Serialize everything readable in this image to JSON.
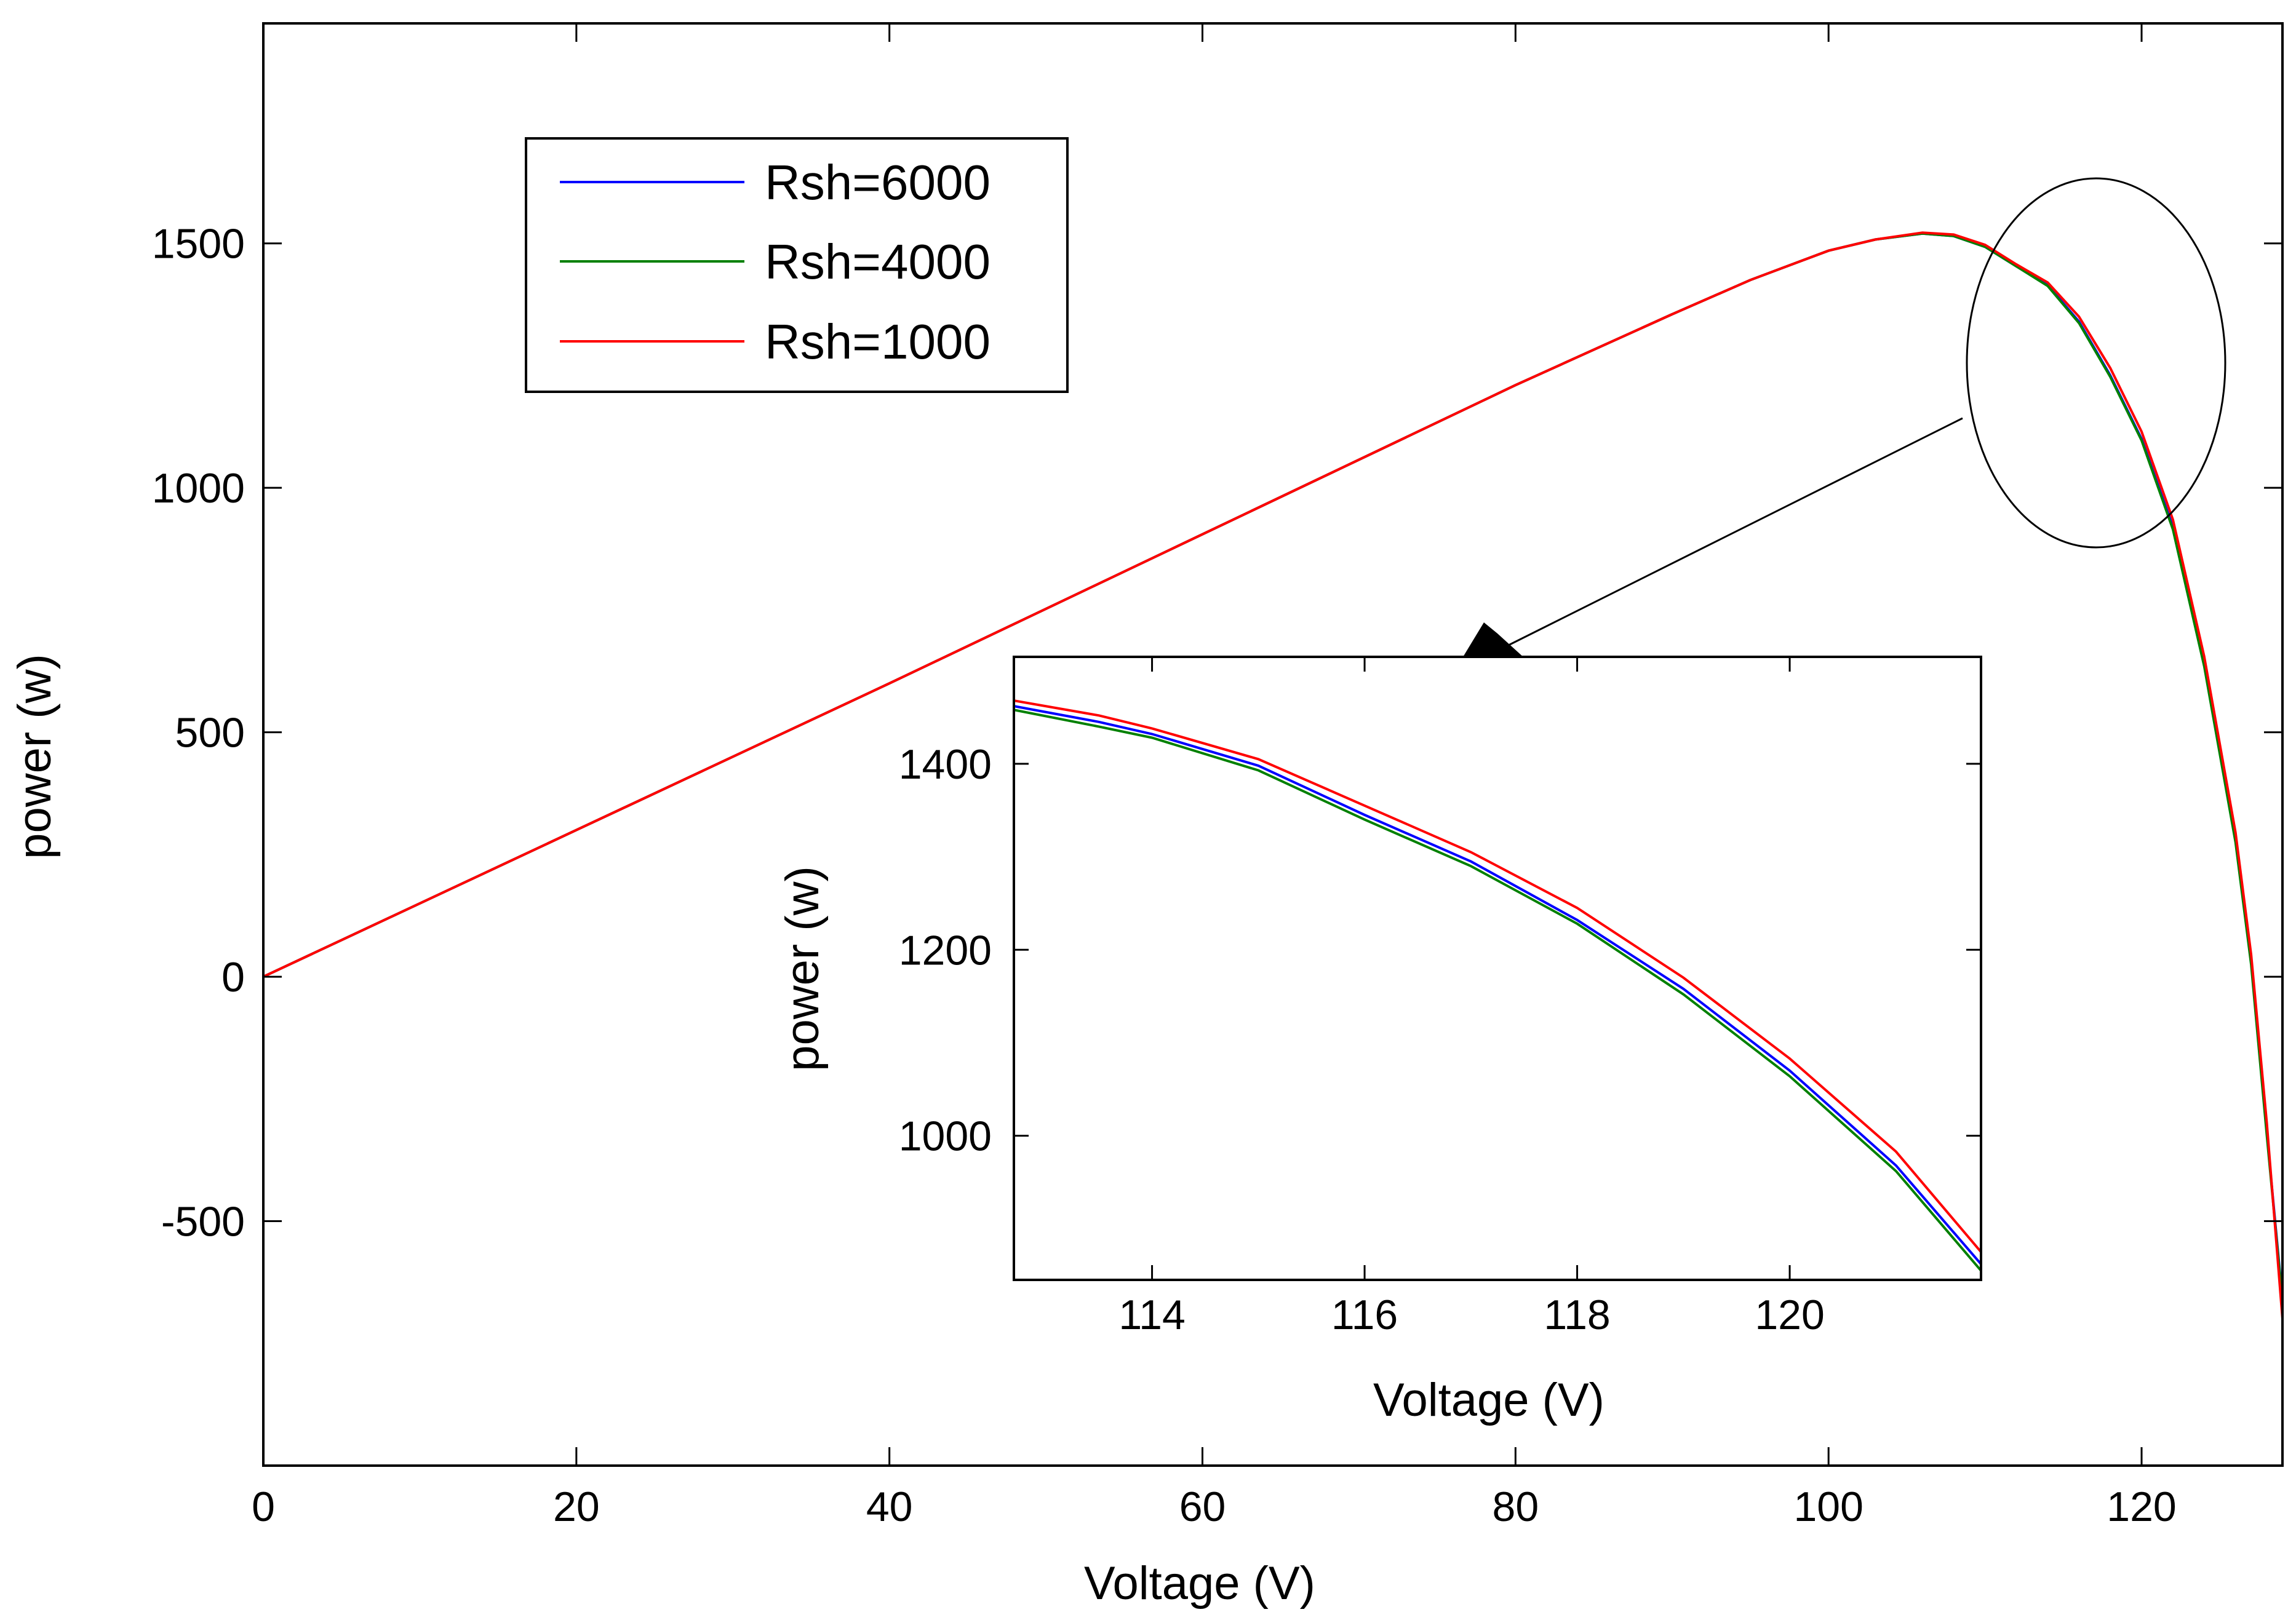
{
  "chart_data": [
    {
      "id": "main",
      "type": "line",
      "title": "",
      "xlabel": "Voltage (V)",
      "ylabel": "power (w)",
      "xlim": [
        0,
        129
      ],
      "ylim": [
        -1000,
        1950
      ],
      "xticks": [
        0,
        20,
        40,
        60,
        80,
        100,
        120
      ],
      "yticks": [
        -500,
        0,
        500,
        1000,
        1500
      ],
      "grid": false,
      "legend_position": "top-left",
      "series": [
        {
          "name": "Rsh=6000",
          "color": "#0000ff",
          "x": [
            0,
            20,
            40,
            60,
            80,
            90,
            95,
            100,
            103,
            106,
            108,
            110,
            112,
            114,
            116,
            118,
            120,
            122,
            124,
            126,
            127,
            128,
            129
          ],
          "y": [
            0,
            300,
            600,
            905,
            1210,
            1355,
            1425,
            1485,
            1508,
            1520,
            1515,
            1493,
            1453,
            1415,
            1340,
            1230,
            1100,
            920,
            640,
            280,
            30,
            -320,
            -660
          ]
        },
        {
          "name": "Rsh=4000",
          "color": "#008000",
          "x": [
            0,
            20,
            40,
            60,
            80,
            90,
            95,
            100,
            103,
            106,
            108,
            110,
            112,
            114,
            116,
            118,
            120,
            122,
            124,
            126,
            127,
            128,
            129
          ],
          "y": [
            0,
            300,
            600,
            905,
            1210,
            1355,
            1425,
            1485,
            1508,
            1520,
            1515,
            1493,
            1453,
            1413,
            1337,
            1227,
            1097,
            915,
            635,
            275,
            25,
            -325,
            -665
          ]
        },
        {
          "name": "Rsh=1000",
          "color": "#ff0000",
          "x": [
            0,
            20,
            40,
            60,
            80,
            90,
            95,
            100,
            103,
            106,
            108,
            110,
            112,
            114,
            116,
            118,
            120,
            122,
            124,
            126,
            127,
            128,
            129
          ],
          "y": [
            0,
            300,
            600,
            905,
            1210,
            1355,
            1425,
            1485,
            1508,
            1522,
            1518,
            1497,
            1457,
            1420,
            1350,
            1245,
            1115,
            935,
            655,
            295,
            45,
            -300,
            -700
          ]
        }
      ],
      "annotations": [
        "ellipse highlighting region near the maximum power point (about 113-122 V)",
        "arrow pointing to inset zoom plot"
      ]
    },
    {
      "id": "inset",
      "type": "line",
      "title": "",
      "xlabel": "Voltage (V)",
      "ylabel": "power (w)",
      "xlim": [
        112.7,
        121.8
      ],
      "ylim": [
        845,
        1515
      ],
      "xticks": [
        114,
        116,
        118,
        120
      ],
      "yticks": [
        1000,
        1200,
        1400
      ],
      "grid": false,
      "series": [
        {
          "name": "Rsh=6000",
          "color": "#0000ff",
          "x": [
            112.7,
            113.5,
            114,
            115,
            116,
            117,
            118,
            119,
            120,
            121,
            121.8
          ],
          "y": [
            1462,
            1445,
            1432,
            1398,
            1345,
            1295,
            1232,
            1158,
            1070,
            968,
            862
          ]
        },
        {
          "name": "Rsh=4000",
          "color": "#008000",
          "x": [
            112.7,
            113.5,
            114,
            115,
            116,
            117,
            118,
            119,
            120,
            121,
            121.8
          ],
          "y": [
            1458,
            1440,
            1428,
            1393,
            1340,
            1290,
            1228,
            1152,
            1064,
            962,
            855
          ]
        },
        {
          "name": "Rsh=1000",
          "color": "#ff0000",
          "x": [
            112.7,
            113.5,
            114,
            115,
            116,
            117,
            118,
            119,
            120,
            121,
            121.8
          ],
          "y": [
            1468,
            1452,
            1438,
            1405,
            1355,
            1305,
            1245,
            1170,
            1083,
            983,
            875
          ]
        }
      ]
    }
  ]
}
